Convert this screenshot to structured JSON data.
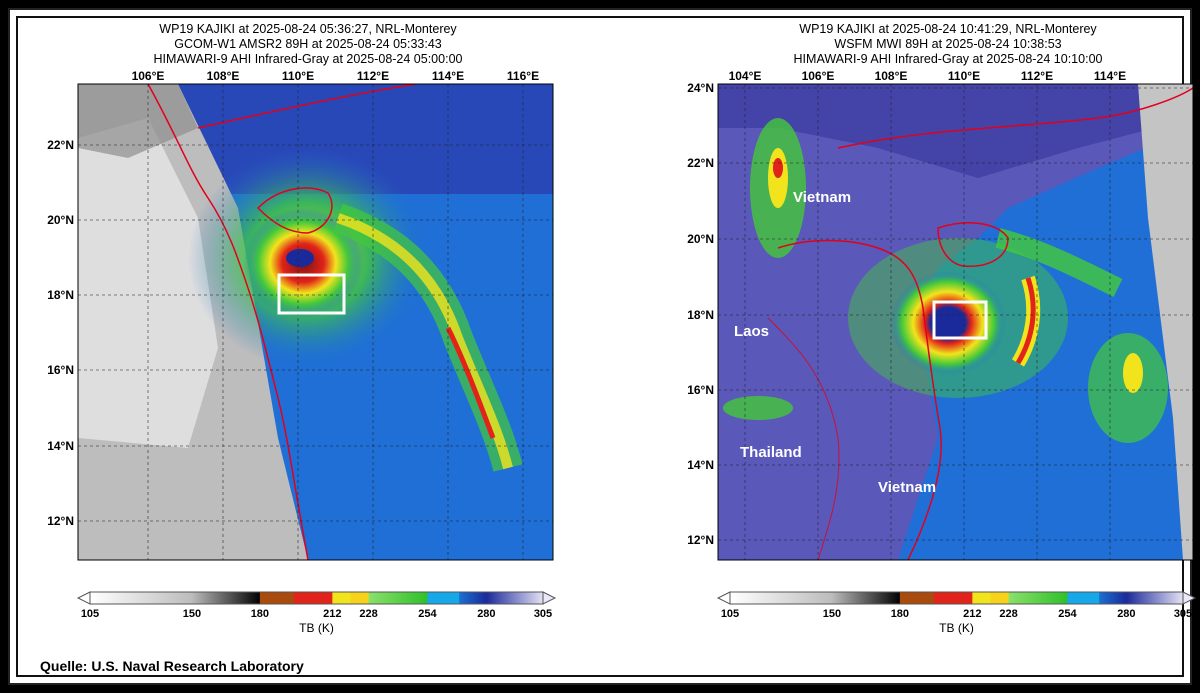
{
  "source_label": "Quelle: U.S. Naval Research Laboratory",
  "colorbar": {
    "ticks": [
      "105",
      "150",
      "180",
      "212",
      "228",
      "254",
      "280",
      "305"
    ],
    "tick_values": [
      105,
      150,
      180,
      212,
      228,
      254,
      280,
      305
    ],
    "unit": "TB (K)"
  },
  "panels": [
    {
      "title_lines": [
        "WP19 KAJIKI at 2025-08-24 05:36:27, NRL-Monterey",
        "GCOM-W1 AMSR2 89H at 2025-08-24 05:33:43",
        "HIMAWARI-9 AHI Infrared-Gray at 2025-08-24 05:00:00"
      ],
      "lon_labels": [
        "106°E",
        "108°E",
        "110°E",
        "112°E",
        "114°E",
        "116°E"
      ],
      "lat_labels": [
        "22°N",
        "20°N",
        "18°N",
        "16°N",
        "14°N",
        "12°N"
      ],
      "place_labels": []
    },
    {
      "title_lines": [
        "WP19 KAJIKI at 2025-08-24 10:41:29, NRL-Monterey",
        "WSFM MWI 89H at 2025-08-24 10:38:53",
        "HIMAWARI-9 AHI Infrared-Gray at 2025-08-24 10:10:00"
      ],
      "lon_labels": [
        "104°E",
        "106°E",
        "108°E",
        "110°E",
        "112°E",
        "114°E"
      ],
      "lat_labels": [
        "24°N",
        "22°N",
        "20°N",
        "18°N",
        "16°N",
        "14°N",
        "12°N"
      ],
      "place_labels": [
        "Vietnam",
        "Laos",
        "Thailand",
        "Vietnam"
      ]
    }
  ],
  "colors": {
    "ocean_blue": "#1f6fd6",
    "deep_blue": "#1b2a9a",
    "land_purple": "#5a58b8",
    "green": "#43c93a",
    "yellow": "#f2e41c",
    "red": "#e2231a",
    "dark_red": "#7a1010",
    "coast": "#e3001b",
    "box": "#ffffff"
  }
}
